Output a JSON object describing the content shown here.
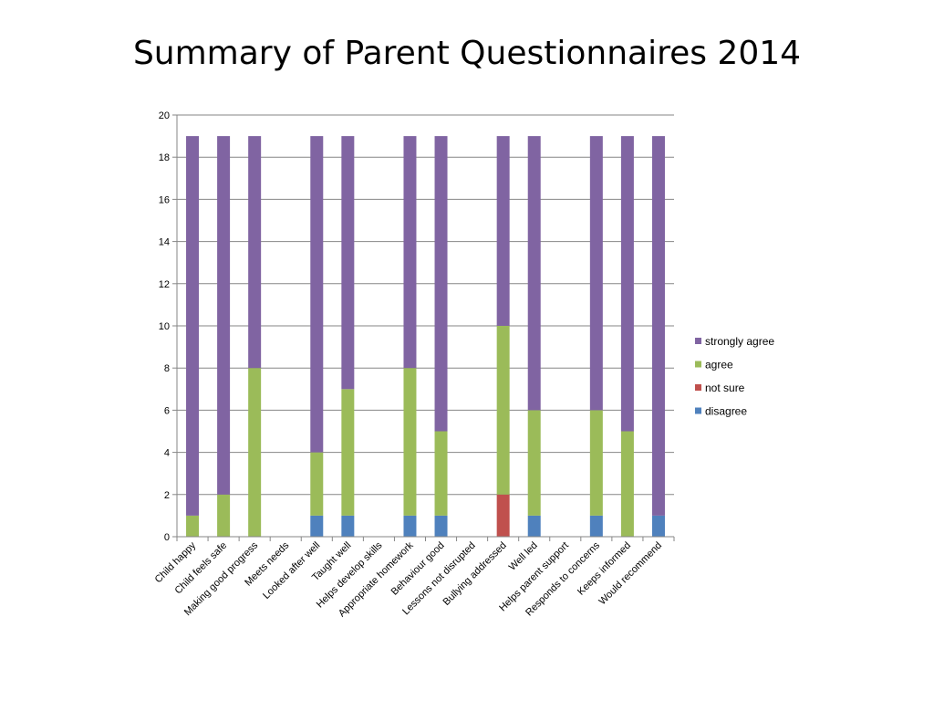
{
  "slide": {
    "title": "Summary of Parent Questionnaires 2014"
  },
  "chart_data": {
    "type": "bar",
    "stacked": true,
    "title": "Summary of Parent Questionnaires 2014",
    "xlabel": "",
    "ylabel": "",
    "ylim": [
      0,
      20
    ],
    "yticks": [
      0,
      2,
      4,
      6,
      8,
      10,
      12,
      14,
      16,
      18,
      20
    ],
    "grid": true,
    "legend_position": "right",
    "categories": [
      "Child happy",
      "Child feels safe",
      "Making good progress",
      "Meets needs",
      "Looked after well",
      "Taught well",
      "Helps develop skills",
      "Appropriate homework",
      "Behaviour good",
      "Lessons not disrupted",
      "Bullying addressed",
      "Well led",
      "Helps parent support",
      "Responds to concerns",
      "Keeps informed",
      "Would recommend"
    ],
    "series": [
      {
        "name": "disagree",
        "color": "#4F81BD",
        "values": [
          0,
          0,
          0,
          0,
          1,
          1,
          0,
          1,
          1,
          0,
          0,
          1,
          0,
          1,
          0,
          1
        ]
      },
      {
        "name": "not sure",
        "color": "#C0504D",
        "values": [
          0,
          0,
          0,
          0,
          0,
          0,
          0,
          0,
          0,
          0,
          2,
          0,
          0,
          0,
          0,
          0
        ]
      },
      {
        "name": "agree",
        "color": "#9BBB59",
        "values": [
          1,
          2,
          8,
          0,
          3,
          6,
          0,
          7,
          4,
          0,
          8,
          5,
          0,
          5,
          5,
          0
        ]
      },
      {
        "name": "strongly agree",
        "color": "#8064A2",
        "values": [
          18,
          17,
          11,
          0,
          15,
          12,
          0,
          11,
          14,
          0,
          9,
          13,
          0,
          13,
          14,
          18
        ]
      }
    ],
    "legend_order": [
      "strongly agree",
      "agree",
      "not sure",
      "disagree"
    ]
  }
}
